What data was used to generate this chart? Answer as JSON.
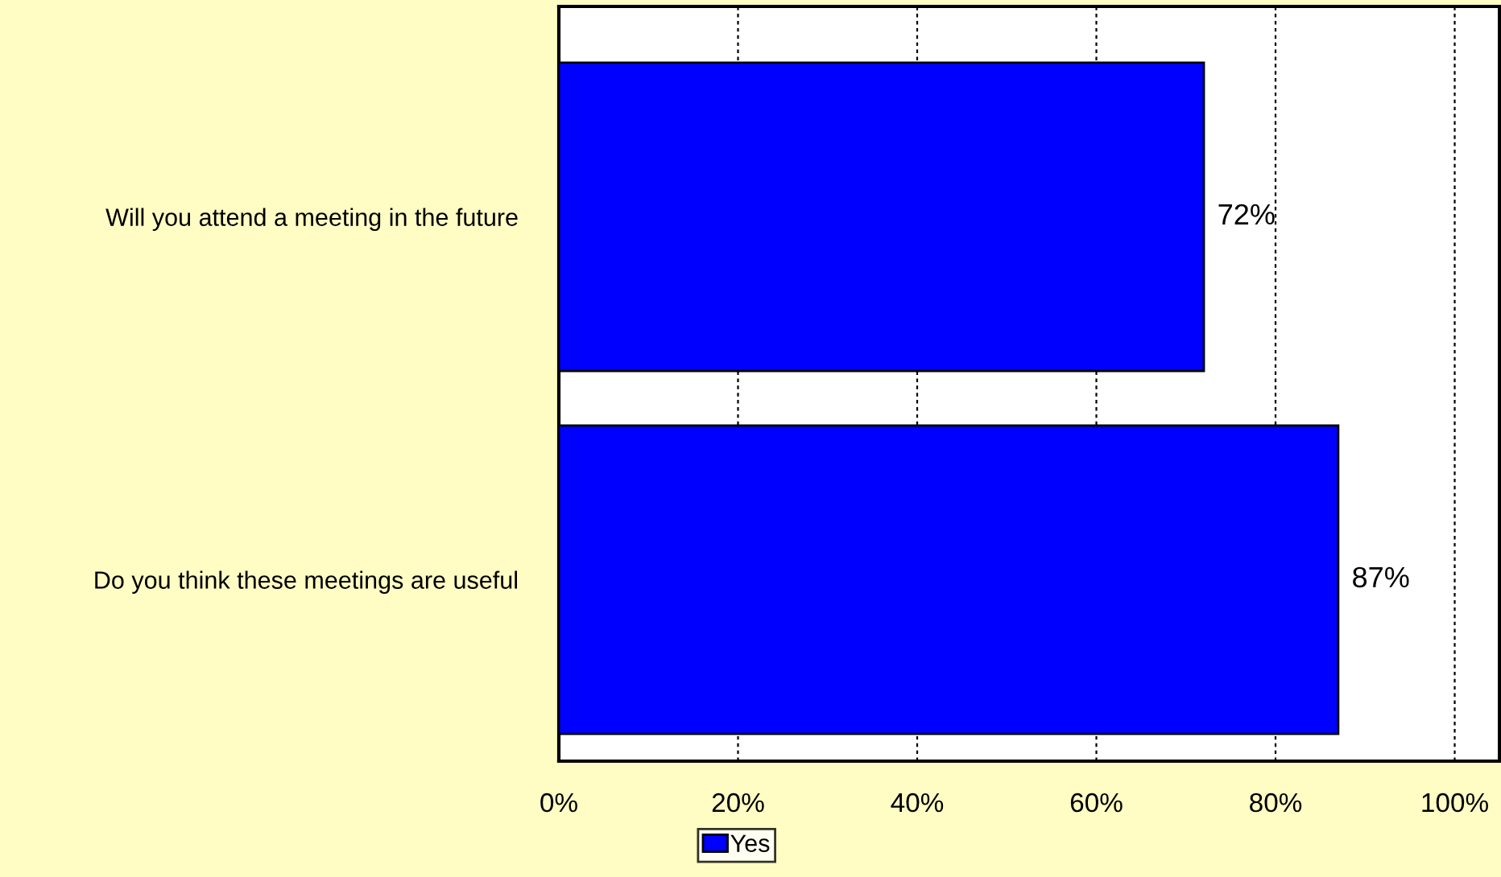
{
  "chart_data": {
    "type": "bar",
    "orientation": "horizontal",
    "categories": [
      "Will you attend a meeting in the future",
      "Do you think these meetings are useful"
    ],
    "series": [
      {
        "name": "Yes",
        "color": "#0000ff",
        "values": [
          72,
          87
        ]
      }
    ],
    "value_labels": [
      "72%",
      "87%"
    ],
    "xlim": [
      0,
      105
    ],
    "xticks": [
      {
        "value": 0,
        "label": "0%"
      },
      {
        "value": 20,
        "label": "20%"
      },
      {
        "value": 40,
        "label": "40%"
      },
      {
        "value": 60,
        "label": "60%"
      },
      {
        "value": 80,
        "label": "80%"
      },
      {
        "value": 100,
        "label": "100%"
      }
    ],
    "grid": "x",
    "legend": "bottom"
  }
}
